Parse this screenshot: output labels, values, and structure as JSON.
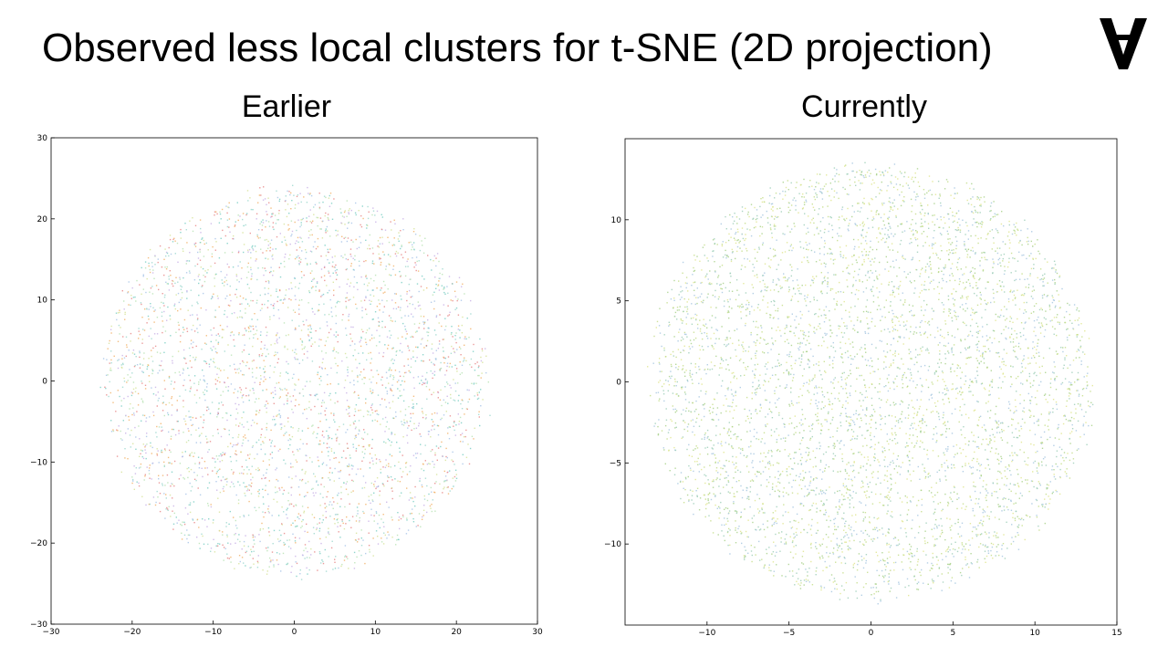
{
  "title": "Observed less local clusters for t-SNE (2D projection)",
  "logo_icon": "inverted-a-logo-icon",
  "chart_data": [
    {
      "type": "scatter",
      "title": "Earlier",
      "xlabel": "",
      "ylabel": "",
      "xlim": [
        -30,
        30
      ],
      "ylim": [
        -30,
        30
      ],
      "xticks": [
        "−30",
        "−20",
        "−10",
        "0",
        "10",
        "20",
        "30"
      ],
      "yticks": [
        "−30",
        "−20",
        "−10",
        "0",
        "10",
        "20",
        "30"
      ],
      "grid": false,
      "legend": "none",
      "cluster": {
        "center_x": 0,
        "center_y": 0,
        "radius": 24,
        "point_count": 3600
      },
      "palette": [
        "#9fd8cf",
        "#7ccfc4",
        "#a8c4e8",
        "#c9b2e6",
        "#e88a8a",
        "#f2b36b",
        "#d6e39a",
        "#b9e3b4"
      ],
      "point_colors": [
        "#9fd8cf",
        "#7ccfc4",
        "#a8c4e8",
        "#c9b2e6",
        "#e88a8a",
        "#f2b36b",
        "#d6e39a",
        "#b9e3b4"
      ]
    },
    {
      "type": "scatter",
      "title": "Currently",
      "xlabel": "",
      "ylabel": "",
      "xlim": [
        -15,
        15
      ],
      "ylim": [
        -15,
        15
      ],
      "xticks": [
        "−10",
        "−5",
        "0",
        "5",
        "10",
        "15"
      ],
      "yticks": [
        "−10",
        "−5",
        "0",
        "5",
        "10"
      ],
      "grid": false,
      "legend": "none",
      "cluster": {
        "center_x": 0,
        "center_y": 0,
        "radius": 13.5,
        "point_count": 5200
      },
      "palette": [
        "#c4dd8a",
        "#a9d18b",
        "#dfe58e",
        "#9fcfb8",
        "#a7c7e0"
      ],
      "point_colors": [
        "#c4dd8a",
        "#a9d18b",
        "#dfe58e",
        "#9fcfb8",
        "#a7c7e0"
      ]
    }
  ]
}
